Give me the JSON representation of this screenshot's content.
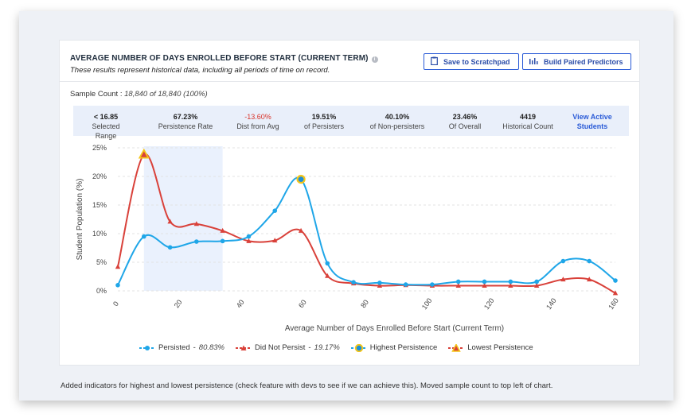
{
  "header": {
    "title": "AVERAGE NUMBER OF DAYS ENROLLED BEFORE START (CURRENT TERM)",
    "subtitle": "These results represent historical data, including all periods of time on record.",
    "info_icon": "info-icon",
    "save_label": "Save to Scratchpad",
    "paired_label": "Build Paired Predictors"
  },
  "sample": {
    "label": "Sample Count :",
    "value": "18,840 of 18,840 (100%)"
  },
  "stats": [
    {
      "value": "< 16.85",
      "label": "Selected Range"
    },
    {
      "value": "67.23%",
      "label": "Persistence Rate"
    },
    {
      "value": "-13.60%",
      "label": "Dist from Avg",
      "color": "#d9352b"
    },
    {
      "value": "19.51%",
      "label": "of Persisters"
    },
    {
      "value": "40.10%",
      "label": "of Non-persisters"
    },
    {
      "value": "23.46%",
      "label": "Of Overall"
    },
    {
      "value": "4419",
      "label": "Historical Count"
    }
  ],
  "view_active": {
    "line1": "View Active",
    "line2": "Students"
  },
  "chart_data": {
    "type": "line",
    "xlabel": "Average Number of Days Enrolled Before Start (Current Term)",
    "ylabel": "Student Population (%)",
    "xlim": [
      0,
      160
    ],
    "ylim": [
      0,
      25
    ],
    "x_ticks": [
      "0",
      "20",
      "40",
      "60",
      "80",
      "100",
      "120",
      "140",
      "160"
    ],
    "y_ticks": [
      "0%",
      "5%",
      "10%",
      "15%",
      "20%",
      "25%"
    ],
    "selected_range": [
      8.4,
      33.7
    ],
    "series": [
      {
        "name": "Persisted",
        "pct": "80.83%",
        "color": "#1fa6e8",
        "x": [
          0,
          8.4,
          16.8,
          25.3,
          33.7,
          42.1,
          50.5,
          58.9,
          67.4,
          75.8,
          84.2,
          92.6,
          101.1,
          109.5,
          117.9,
          126.3,
          134.7,
          143.2,
          151.6,
          160
        ],
        "y": [
          1.0,
          9.5,
          7.6,
          8.6,
          8.7,
          9.5,
          14.0,
          19.5,
          4.8,
          1.5,
          1.4,
          1.1,
          1.1,
          1.6,
          1.6,
          1.6,
          1.6,
          5.2,
          5.2,
          1.8
        ]
      },
      {
        "name": "Did Not Persist",
        "pct": "19.17%",
        "color": "#d9413a",
        "x": [
          0,
          8.4,
          16.8,
          25.3,
          33.7,
          42.1,
          50.5,
          58.9,
          67.4,
          75.8,
          84.2,
          92.6,
          101.1,
          109.5,
          117.9,
          126.3,
          134.7,
          143.2,
          151.6,
          160
        ],
        "y": [
          4.2,
          23.8,
          12.1,
          11.7,
          10.5,
          8.7,
          8.8,
          10.5,
          2.6,
          1.3,
          0.9,
          1.0,
          0.9,
          0.9,
          0.9,
          0.9,
          0.9,
          2.0,
          2.0,
          -0.4
        ]
      }
    ],
    "highest_persistence": {
      "label": "Highest Persistence",
      "x": 58.9,
      "y": 19.5
    },
    "lowest_persistence": {
      "label": "Lowest Persistence",
      "x": 8.4,
      "y": 23.8
    }
  },
  "note": "Added indicators for highest and lowest persistence (check feature with devs to see if we can achieve this).  Moved sample count to top left of chart."
}
